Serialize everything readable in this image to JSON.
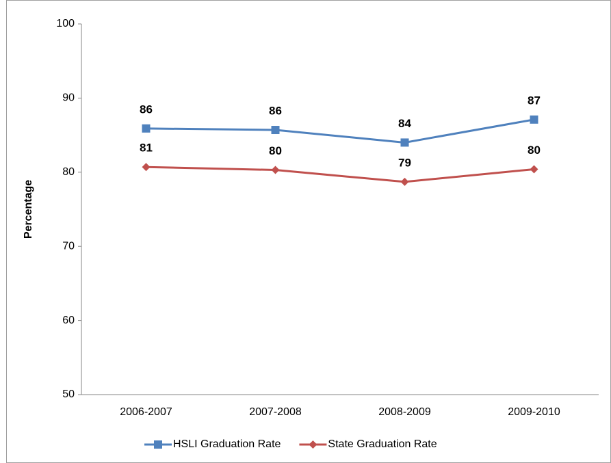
{
  "chart_data": {
    "type": "line",
    "y_label": "Percentage",
    "categories": [
      "2006-2007",
      "2007-2008",
      "2008-2009",
      "2009-2010"
    ],
    "series": [
      {
        "name": "HSLI Graduation Rate",
        "color": "#4f81bd",
        "marker": "square",
        "values": [
          85.9,
          85.7,
          84.0,
          87.1
        ],
        "value_labels": [
          "86",
          "86",
          "84",
          "87"
        ]
      },
      {
        "name": "State Graduation Rate",
        "color": "#c0504d",
        "marker": "diamond",
        "values": [
          80.7,
          80.3,
          78.7,
          80.4
        ],
        "value_labels": [
          "81",
          "80",
          "79",
          "80"
        ]
      }
    ],
    "ylim": [
      50,
      100
    ],
    "yticks": [
      50,
      60,
      70,
      80,
      90,
      100
    ],
    "grid": false,
    "legend": "bottom"
  }
}
